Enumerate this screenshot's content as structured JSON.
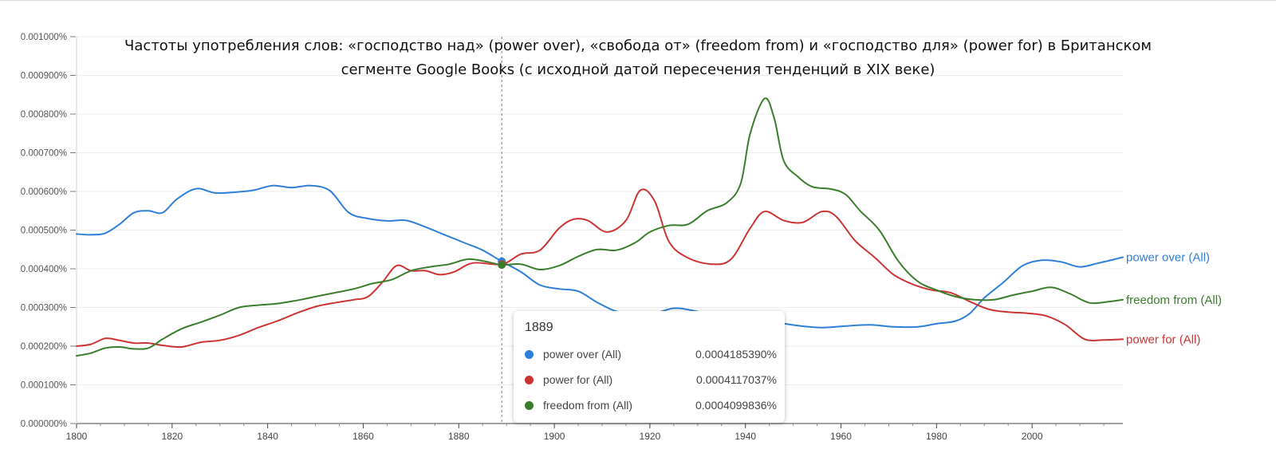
{
  "title": {
    "line1": "Частоты употребления слов: «господство над» (power over), «свобода от» (freedom from) и «господство для» (power for) в Британском",
    "line2": "сегменте Google Books (с исходной датой пересечения тенденций в XIX веке)"
  },
  "chart_data": {
    "type": "line",
    "title": "Частоты употребления слов: «господство над» (power over), «свобода от» (freedom from) и «господство для» (power for) в Британском сегменте Google Books (с исходной датой пересечения тенденций в XIX веке)",
    "xlabel": "",
    "ylabel": "",
    "xlim": [
      1800,
      2019
    ],
    "ylim": [
      0,
      0.001
    ],
    "x_ticks": [
      "1800",
      "1820",
      "1840",
      "1860",
      "1880",
      "1900",
      "1920",
      "1940",
      "1960",
      "1980",
      "2000"
    ],
    "y_ticks": [
      "0.000000%",
      "0.000100%",
      "0.000200%",
      "0.000300%",
      "0.000400%",
      "0.000500%",
      "0.000600%",
      "0.000700%",
      "0.000800%",
      "0.000900%",
      "0.001000%"
    ],
    "grid": true,
    "legend": "labels at line ends",
    "hover_year": 1889,
    "series": [
      {
        "name": "power over (All)",
        "end_label": "power over (All)",
        "color": "#2f7ed8",
        "points": [
          [
            1800,
            0.00049
          ],
          [
            1803,
            0.000488
          ],
          [
            1806,
            0.000492
          ],
          [
            1809,
            0.000515
          ],
          [
            1812,
            0.000545
          ],
          [
            1815,
            0.00055
          ],
          [
            1818,
            0.000545
          ],
          [
            1821,
            0.00058
          ],
          [
            1825,
            0.000607
          ],
          [
            1829,
            0.000596
          ],
          [
            1833,
            0.000598
          ],
          [
            1837,
            0.000603
          ],
          [
            1841,
            0.000615
          ],
          [
            1845,
            0.00061
          ],
          [
            1849,
            0.000615
          ],
          [
            1853,
            0.000602
          ],
          [
            1857,
            0.000545
          ],
          [
            1861,
            0.00053
          ],
          [
            1865,
            0.000524
          ],
          [
            1869,
            0.000525
          ],
          [
            1873,
            0.000508
          ],
          [
            1877,
            0.000488
          ],
          [
            1881,
            0.000468
          ],
          [
            1885,
            0.000448
          ],
          [
            1889,
            0.000419
          ],
          [
            1893,
            0.000392
          ],
          [
            1897,
            0.000358
          ],
          [
            1901,
            0.000348
          ],
          [
            1905,
            0.000342
          ],
          [
            1909,
            0.000313
          ],
          [
            1913,
            0.00029
          ],
          [
            1917,
            0.000285
          ],
          [
            1921,
            0.000285
          ],
          [
            1925,
            0.000298
          ],
          [
            1929,
            0.000292
          ],
          [
            1935,
            0.000275
          ],
          [
            1941,
            0.000268
          ],
          [
            1946,
            0.000262
          ],
          [
            1951,
            0.000253
          ],
          [
            1956,
            0.000248
          ],
          [
            1961,
            0.000252
          ],
          [
            1966,
            0.000255
          ],
          [
            1971,
            0.00025
          ],
          [
            1976,
            0.00025
          ],
          [
            1980,
            0.000258
          ],
          [
            1984,
            0.000265
          ],
          [
            1987,
            0.000285
          ],
          [
            1990,
            0.000325
          ],
          [
            1994,
            0.000365
          ],
          [
            1998,
            0.000408
          ],
          [
            2002,
            0.000422
          ],
          [
            2006,
            0.000418
          ],
          [
            2010,
            0.000405
          ],
          [
            2014,
            0.000415
          ],
          [
            2019,
            0.00043
          ]
        ]
      },
      {
        "name": "power for (All)",
        "end_label": "power for (All)",
        "color": "#cc3333",
        "points": [
          [
            1800,
            0.0002
          ],
          [
            1803,
            0.000205
          ],
          [
            1806,
            0.00022
          ],
          [
            1809,
            0.000215
          ],
          [
            1812,
            0.000208
          ],
          [
            1815,
            0.000208
          ],
          [
            1818,
            0.000202
          ],
          [
            1822,
            0.000198
          ],
          [
            1826,
            0.00021
          ],
          [
            1830,
            0.000215
          ],
          [
            1834,
            0.000228
          ],
          [
            1838,
            0.000248
          ],
          [
            1842,
            0.000265
          ],
          [
            1846,
            0.000285
          ],
          [
            1850,
            0.000302
          ],
          [
            1854,
            0.000312
          ],
          [
            1858,
            0.00032
          ],
          [
            1861,
            0.000328
          ],
          [
            1864,
            0.000365
          ],
          [
            1867,
            0.000408
          ],
          [
            1870,
            0.000395
          ],
          [
            1873,
            0.000395
          ],
          [
            1876,
            0.000385
          ],
          [
            1879,
            0.000392
          ],
          [
            1883,
            0.000415
          ],
          [
            1889,
            0.000412
          ],
          [
            1893,
            0.000438
          ],
          [
            1897,
            0.000448
          ],
          [
            1901,
            0.000505
          ],
          [
            1904,
            0.000528
          ],
          [
            1907,
            0.000525
          ],
          [
            1911,
            0.000495
          ],
          [
            1915,
            0.000525
          ],
          [
            1918,
            0.000603
          ],
          [
            1921,
            0.000575
          ],
          [
            1924,
            0.00047
          ],
          [
            1928,
            0.000428
          ],
          [
            1933,
            0.000412
          ],
          [
            1937,
            0.000425
          ],
          [
            1941,
            0.000505
          ],
          [
            1944,
            0.000548
          ],
          [
            1948,
            0.000525
          ],
          [
            1952,
            0.00052
          ],
          [
            1956,
            0.000548
          ],
          [
            1959,
            0.000535
          ],
          [
            1963,
            0.000472
          ],
          [
            1967,
            0.00043
          ],
          [
            1971,
            0.000385
          ],
          [
            1975,
            0.00036
          ],
          [
            1979,
            0.000345
          ],
          [
            1983,
            0.000338
          ],
          [
            1987,
            0.000315
          ],
          [
            1991,
            0.000295
          ],
          [
            1995,
            0.000288
          ],
          [
            1999,
            0.000285
          ],
          [
            2003,
            0.000278
          ],
          [
            2007,
            0.000255
          ],
          [
            2011,
            0.000218
          ],
          [
            2015,
            0.000216
          ],
          [
            2019,
            0.000218
          ]
        ]
      },
      {
        "name": "freedom from (All)",
        "end_label": "freedom from (All)",
        "color": "#3a7d2c",
        "points": [
          [
            1800,
            0.000175
          ],
          [
            1803,
            0.000182
          ],
          [
            1806,
            0.000195
          ],
          [
            1809,
            0.000198
          ],
          [
            1812,
            0.000193
          ],
          [
            1815,
            0.000195
          ],
          [
            1818,
            0.000218
          ],
          [
            1822,
            0.000245
          ],
          [
            1826,
            0.000262
          ],
          [
            1830,
            0.00028
          ],
          [
            1834,
            0.0003
          ],
          [
            1838,
            0.000306
          ],
          [
            1842,
            0.00031
          ],
          [
            1846,
            0.000318
          ],
          [
            1850,
            0.000328
          ],
          [
            1854,
            0.000338
          ],
          [
            1858,
            0.000348
          ],
          [
            1862,
            0.000362
          ],
          [
            1866,
            0.000372
          ],
          [
            1870,
            0.000395
          ],
          [
            1874,
            0.000405
          ],
          [
            1878,
            0.000412
          ],
          [
            1882,
            0.000425
          ],
          [
            1886,
            0.000418
          ],
          [
            1889,
            0.00041
          ],
          [
            1893,
            0.000412
          ],
          [
            1897,
            0.000398
          ],
          [
            1901,
            0.000408
          ],
          [
            1905,
            0.000432
          ],
          [
            1909,
            0.00045
          ],
          [
            1913,
            0.000448
          ],
          [
            1917,
            0.000468
          ],
          [
            1920,
            0.000495
          ],
          [
            1924,
            0.000512
          ],
          [
            1928,
            0.000515
          ],
          [
            1932,
            0.00055
          ],
          [
            1936,
            0.00057
          ],
          [
            1939,
            0.00062
          ],
          [
            1941,
            0.00075
          ],
          [
            1944,
            0.00084
          ],
          [
            1946,
            0.00079
          ],
          [
            1948,
            0.00068
          ],
          [
            1951,
            0.000638
          ],
          [
            1954,
            0.000612
          ],
          [
            1958,
            0.000606
          ],
          [
            1961,
            0.000592
          ],
          [
            1964,
            0.00055
          ],
          [
            1968,
            0.0005
          ],
          [
            1972,
            0.00042
          ],
          [
            1976,
            0.000368
          ],
          [
            1980,
            0.000345
          ],
          [
            1984,
            0.000328
          ],
          [
            1988,
            0.00032
          ],
          [
            1992,
            0.00032
          ],
          [
            1996,
            0.000332
          ],
          [
            2000,
            0.000342
          ],
          [
            2004,
            0.000352
          ],
          [
            2008,
            0.000335
          ],
          [
            2012,
            0.000312
          ],
          [
            2016,
            0.000315
          ],
          [
            2019,
            0.00032
          ]
        ]
      }
    ]
  },
  "tooltip": {
    "year": "1889",
    "rows": [
      {
        "name": "power over (All)",
        "value": "0.0004185390%",
        "color": "#2f7ed8"
      },
      {
        "name": "power for (All)",
        "value": "0.0004117037%",
        "color": "#cc3333"
      },
      {
        "name": "freedom from (All)",
        "value": "0.0004099836%",
        "color": "#3a7d2c"
      }
    ]
  }
}
